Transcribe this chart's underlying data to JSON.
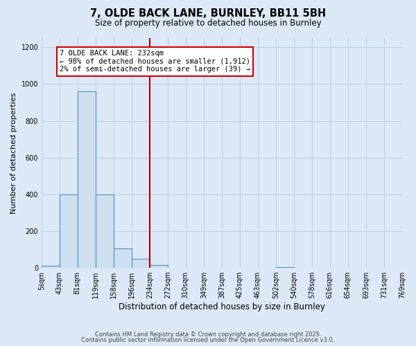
{
  "title_line1": "7, OLDE BACK LANE, BURNLEY, BB11 5BH",
  "title_line2": "Size of property relative to detached houses in Burnley",
  "xlabel": "Distribution of detached houses by size in Burnley",
  "ylabel": "Number of detached properties",
  "bin_edges": [
    5,
    43,
    81,
    119,
    158,
    196,
    234,
    272,
    310,
    349,
    387,
    425,
    463,
    502,
    540,
    578,
    616,
    654,
    693,
    731,
    769
  ],
  "bin_labels": [
    "5sqm",
    "43sqm",
    "81sqm",
    "119sqm",
    "158sqm",
    "196sqm",
    "234sqm",
    "272sqm",
    "310sqm",
    "349sqm",
    "387sqm",
    "425sqm",
    "463sqm",
    "502sqm",
    "540sqm",
    "578sqm",
    "616sqm",
    "654sqm",
    "693sqm",
    "731sqm",
    "769sqm"
  ],
  "bar_heights": [
    10,
    400,
    960,
    400,
    105,
    50,
    15,
    0,
    0,
    0,
    0,
    0,
    0,
    5,
    0,
    0,
    0,
    0,
    0,
    0
  ],
  "bar_color": "#cddff0",
  "bar_edge_color": "#4f8fbf",
  "property_line_x": 234,
  "property_line_color": "#aa0000",
  "annotation_title": "7 OLDE BACK LANE: 232sqm",
  "annotation_line1": "← 98% of detached houses are smaller (1,912)",
  "annotation_line2": "2% of semi-detached houses are larger (39) →",
  "annotation_box_color": "#cc0000",
  "ylim": [
    0,
    1250
  ],
  "yticks": [
    0,
    200,
    400,
    600,
    800,
    1000,
    1200
  ],
  "background_color": "#dce8f5",
  "plot_background": "#dce8f5",
  "grid_color": "#b8cfe0",
  "footer_line1": "Contains HM Land Registry data © Crown copyright and database right 2025.",
  "footer_line2": "Contains public sector information licensed under the Open Government Licence v3.0."
}
